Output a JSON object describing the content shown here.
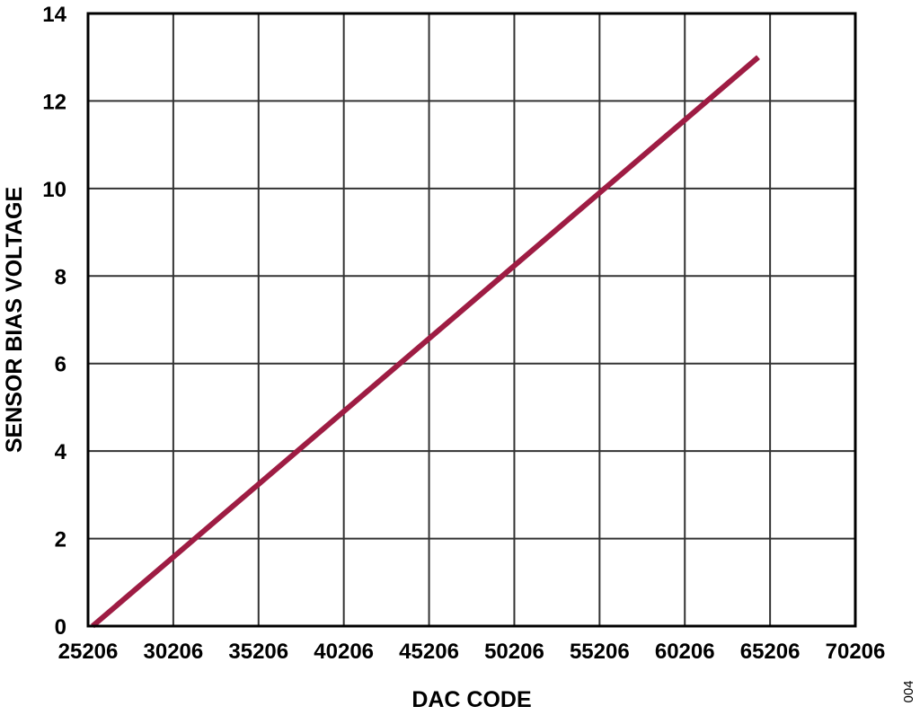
{
  "chart_data": {
    "type": "line",
    "title": "",
    "xlabel": "DAC CODE",
    "ylabel": "SENSOR BIAS VOLTAGE",
    "xlim": [
      25206,
      70206
    ],
    "ylim": [
      0,
      14
    ],
    "xticks": [
      "25206",
      "30206",
      "35206",
      "40206",
      "45206",
      "50206",
      "55206",
      "60206",
      "65206",
      "70206"
    ],
    "yticks": [
      "0",
      "2",
      "4",
      "6",
      "8",
      "10",
      "12",
      "14"
    ],
    "grid": true,
    "series": [
      {
        "x": [
          25470,
          64515
        ],
        "y": [
          0,
          13
        ],
        "color": "#9E1C43"
      }
    ],
    "annotation": "004"
  }
}
